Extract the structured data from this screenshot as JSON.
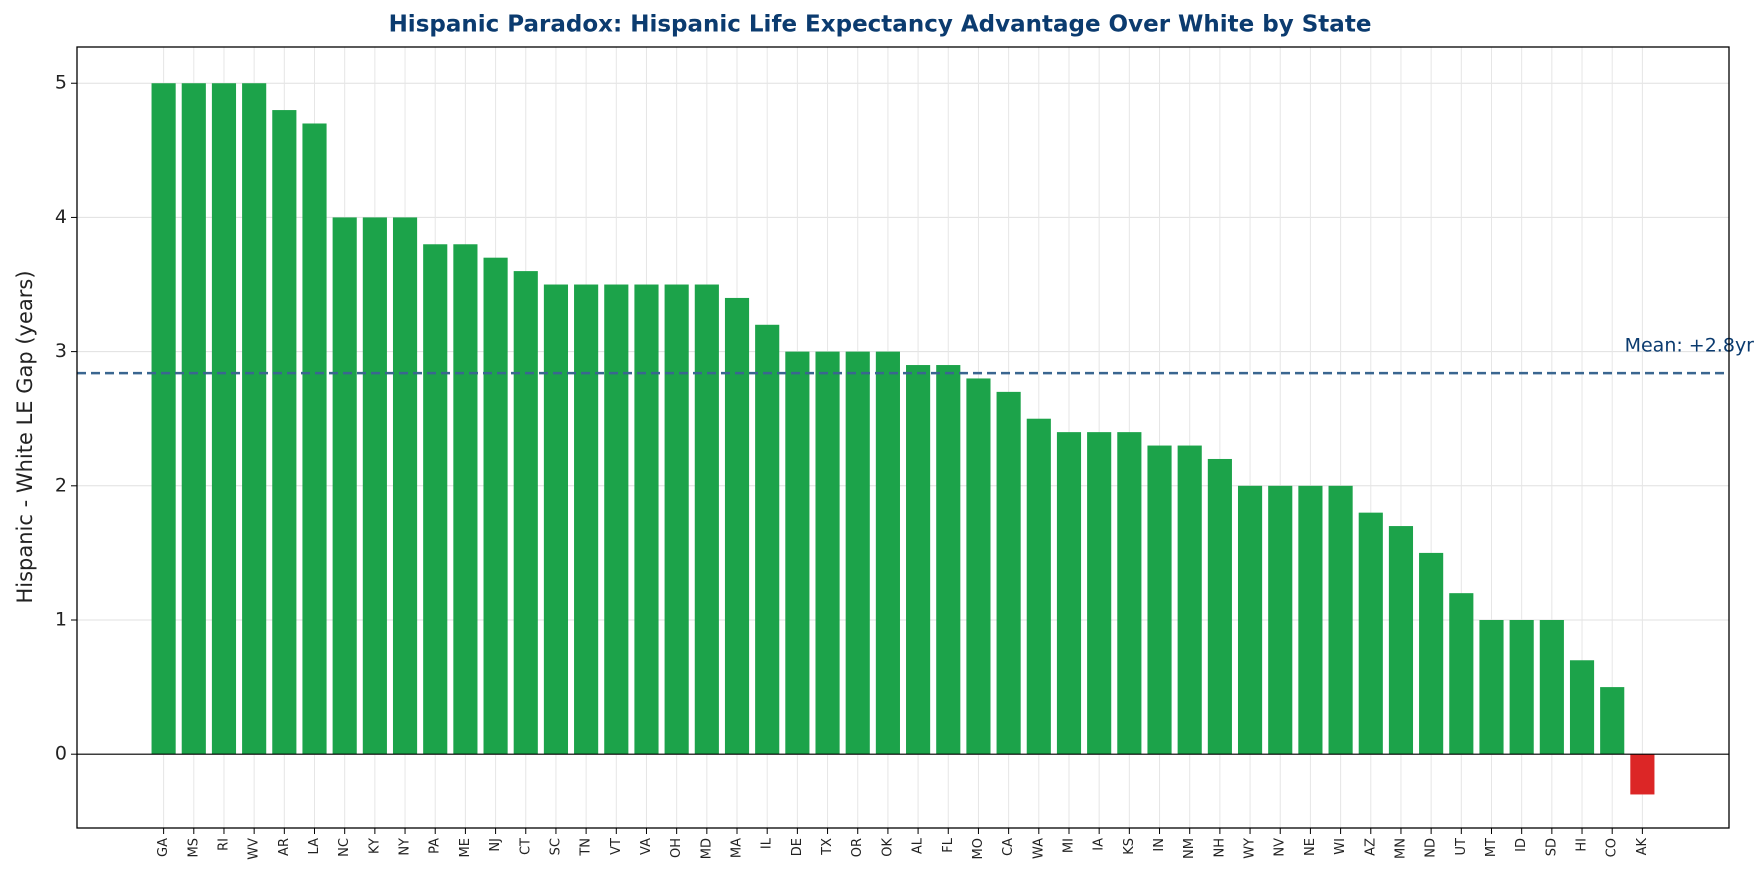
{
  "chart_data": {
    "type": "bar",
    "title": "Hispanic Paradox: Hispanic Life Expectancy Advantage Over White by State",
    "y_label": "Hispanic - White LE Gap (years)",
    "categories": [
      "GA",
      "MS",
      "RI",
      "WV",
      "AR",
      "LA",
      "NC",
      "KY",
      "NY",
      "PA",
      "ME",
      "NJ",
      "CT",
      "SC",
      "TN",
      "VT",
      "VA",
      "OH",
      "MD",
      "MA",
      "IL",
      "DE",
      "TX",
      "OR",
      "OK",
      "AL",
      "FL",
      "MO",
      "CA",
      "WA",
      "MI",
      "IA",
      "KS",
      "IN",
      "NM",
      "NH",
      "WY",
      "NV",
      "NE",
      "WI",
      "AZ",
      "MN",
      "ND",
      "UT",
      "MT",
      "ID",
      "SD",
      "HI",
      "CO",
      "AK"
    ],
    "values": [
      5,
      5,
      5,
      5,
      4.8,
      4.7,
      4,
      4,
      4,
      3.8,
      3.8,
      3.7,
      3.6,
      3.5,
      3.5,
      3.5,
      3.5,
      3.5,
      3.5,
      3.4,
      3.2,
      3,
      3,
      3,
      3,
      2.9,
      2.9,
      2.8,
      2.7,
      2.5,
      2.4,
      2.4,
      2.4,
      2.3,
      2.3,
      2.2,
      2,
      2,
      2,
      2,
      1.8,
      1.7,
      1.5,
      1.2,
      1,
      1,
      1,
      0.7,
      0.5,
      -0.3
    ],
    "color": "#1ca34a",
    "negative_color": "#dc2626",
    "ylim": [
      -0.55,
      5.27
    ],
    "yticks": [
      0,
      1,
      2,
      3,
      4,
      5
    ],
    "grid": true,
    "mean": {
      "value": 2.84,
      "label": "Mean: +2.8yr",
      "color": "#3a6690"
    }
  }
}
